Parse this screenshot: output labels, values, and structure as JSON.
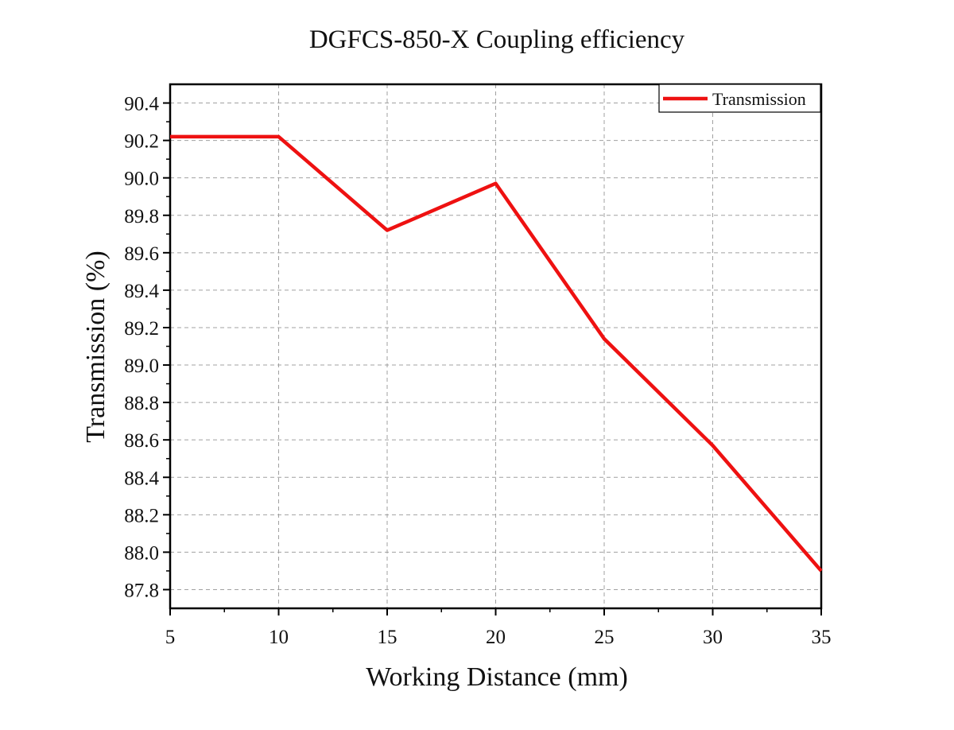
{
  "chart_data": {
    "type": "line",
    "title": "DGFCS-850-X Coupling efficiency",
    "xlabel": "Working Distance (mm)",
    "ylabel": "Transmission (%)",
    "xlim": [
      5,
      35
    ],
    "ylim": [
      87.7,
      90.5
    ],
    "x_ticks": [
      5,
      10,
      15,
      20,
      25,
      30,
      35
    ],
    "y_ticks": [
      87.8,
      88.0,
      88.2,
      88.4,
      88.6,
      88.8,
      89.0,
      89.2,
      89.4,
      89.6,
      89.8,
      90.0,
      90.2,
      90.4
    ],
    "grid": true,
    "legend_position": "top-right",
    "series": [
      {
        "name": "Transmission",
        "color": "#ee1111",
        "x": [
          5,
          10,
          15,
          20,
          25,
          30,
          35
        ],
        "y": [
          90.22,
          90.22,
          89.72,
          89.97,
          89.14,
          88.57,
          87.9
        ]
      }
    ]
  }
}
